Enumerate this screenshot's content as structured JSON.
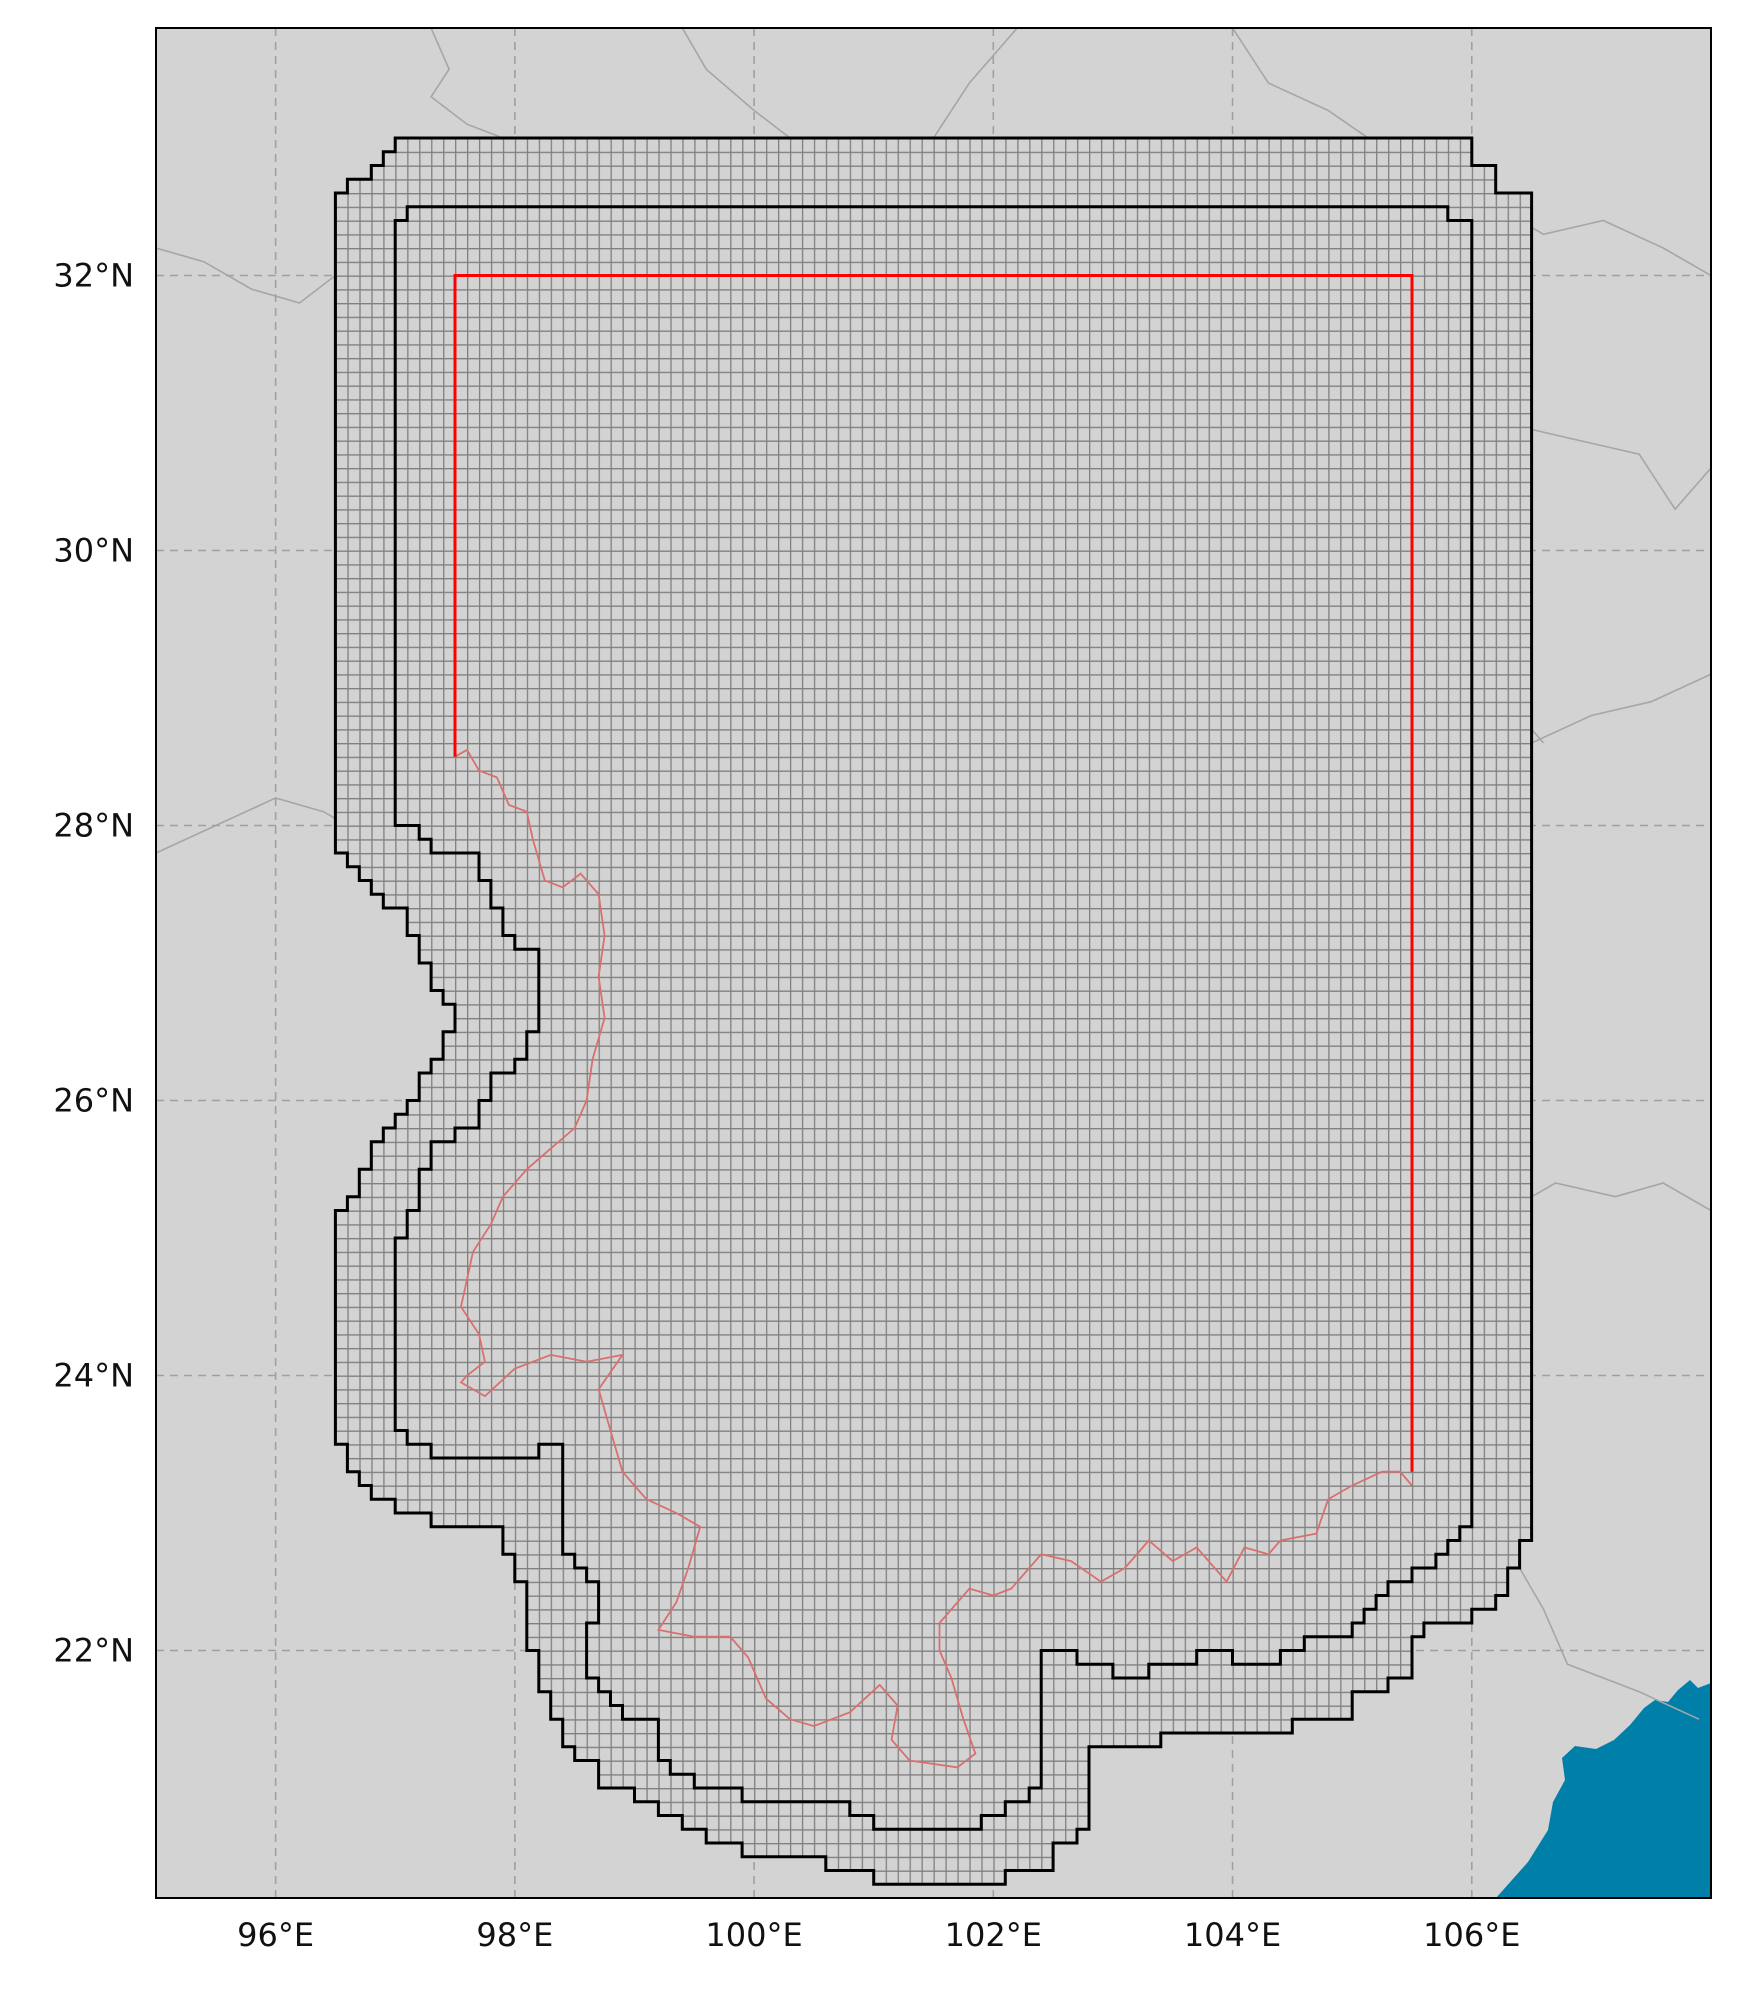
{
  "map": {
    "extent": {
      "lon_min": 95.0,
      "lon_max": 108.0,
      "lat_min": 20.2,
      "lat_max": 33.8
    },
    "x_ticks": [
      {
        "value": 96,
        "label": "96°E"
      },
      {
        "value": 98,
        "label": "98°E"
      },
      {
        "value": 100,
        "label": "100°E"
      },
      {
        "value": 102,
        "label": "102°E"
      },
      {
        "value": 104,
        "label": "104°E"
      },
      {
        "value": 106,
        "label": "106°E"
      }
    ],
    "y_ticks": [
      {
        "value": 22,
        "label": "22°N"
      },
      {
        "value": 24,
        "label": "24°N"
      },
      {
        "value": 26,
        "label": "26°N"
      },
      {
        "value": 28,
        "label": "28°N"
      },
      {
        "value": 30,
        "label": "30°N"
      },
      {
        "value": 32,
        "label": "32°N"
      }
    ],
    "grid_lines": true,
    "cell_size_deg": 0.1,
    "colors": {
      "land": "#d3d3d3",
      "sea": "#0080a8",
      "cell_line": "#808080",
      "buffer_outline": "#000000",
      "domain_box": "#ff0000",
      "region_outline": "#d97070",
      "admin_borders": "#a6a6a6",
      "graticule": "#a0a0a0"
    }
  }
}
